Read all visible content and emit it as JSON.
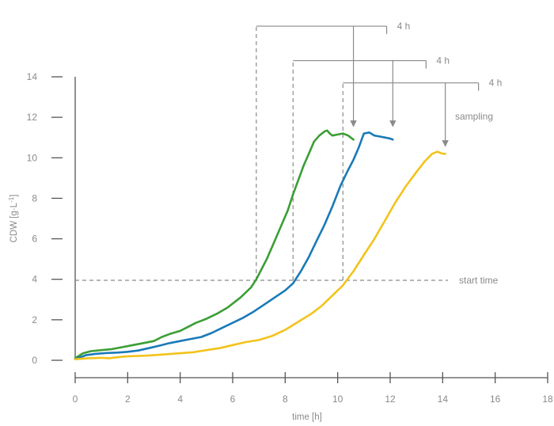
{
  "chart_data": {
    "type": "line",
    "xlabel": "time [h]",
    "ylabel_main": "CDW [g·L",
    "ylabel_sup": "-1",
    "ylabel_close": "]",
    "xlim": [
      0,
      18
    ],
    "ylim": [
      0,
      14
    ],
    "xticks": [
      0,
      2,
      4,
      6,
      8,
      10,
      12,
      14,
      16,
      18
    ],
    "yticks": [
      0,
      2,
      4,
      6,
      8,
      10,
      12,
      14
    ],
    "grid": false,
    "series": [
      {
        "color": "#3b9e35",
        "x": [
          0,
          0.3,
          0.6,
          1.0,
          1.4,
          1.8,
          2.2,
          2.6,
          3.0,
          3.3,
          3.6,
          4.0,
          4.3,
          4.6,
          5.0,
          5.4,
          5.8,
          6.1,
          6.3,
          6.5,
          6.7,
          6.9,
          7.1,
          7.3,
          7.5,
          7.7,
          7.9,
          8.1,
          8.3,
          8.5,
          8.7,
          8.9,
          9.1,
          9.3,
          9.5,
          9.6,
          9.7,
          9.8,
          10.0,
          10.2,
          10.4,
          10.6
        ],
        "y": [
          0.1,
          0.35,
          0.45,
          0.5,
          0.55,
          0.65,
          0.75,
          0.85,
          0.95,
          1.15,
          1.3,
          1.45,
          1.65,
          1.85,
          2.05,
          2.3,
          2.6,
          2.9,
          3.1,
          3.35,
          3.6,
          4.0,
          4.5,
          5.0,
          5.6,
          6.2,
          6.8,
          7.4,
          8.2,
          8.9,
          9.6,
          10.2,
          10.8,
          11.1,
          11.3,
          11.35,
          11.2,
          11.1,
          11.15,
          11.2,
          11.1,
          10.9
        ]
      },
      {
        "color": "#1a7ab8",
        "x": [
          0,
          0.4,
          0.8,
          1.2,
          1.6,
          2.0,
          2.4,
          2.8,
          3.2,
          3.6,
          4.0,
          4.4,
          4.8,
          5.2,
          5.6,
          6.0,
          6.4,
          6.8,
          7.2,
          7.6,
          8.0,
          8.3,
          8.6,
          8.9,
          9.2,
          9.5,
          9.8,
          10.1,
          10.4,
          10.6,
          10.8,
          11.0,
          11.2,
          11.4,
          11.6,
          11.8,
          12.0,
          12.1
        ],
        "y": [
          0.05,
          0.25,
          0.32,
          0.36,
          0.38,
          0.42,
          0.48,
          0.6,
          0.72,
          0.85,
          0.95,
          1.05,
          1.15,
          1.35,
          1.6,
          1.85,
          2.1,
          2.4,
          2.75,
          3.1,
          3.45,
          3.8,
          4.4,
          5.1,
          5.9,
          6.7,
          7.6,
          8.6,
          9.4,
          9.9,
          10.5,
          11.2,
          11.25,
          11.1,
          11.05,
          11.0,
          10.95,
          10.9
        ]
      },
      {
        "color": "#f2c31b",
        "x": [
          0,
          0.5,
          1.0,
          1.3,
          1.6,
          2.0,
          2.5,
          3.0,
          3.5,
          4.0,
          4.5,
          5.0,
          5.5,
          6.0,
          6.5,
          7.0,
          7.5,
          8.0,
          8.5,
          9.0,
          9.4,
          9.8,
          10.2,
          10.6,
          11.0,
          11.4,
          11.8,
          12.2,
          12.6,
          13.0,
          13.3,
          13.6,
          13.8,
          14.0,
          14.1
        ],
        "y": [
          0.05,
          0.1,
          0.12,
          0.1,
          0.15,
          0.2,
          0.22,
          0.25,
          0.3,
          0.35,
          0.4,
          0.5,
          0.6,
          0.75,
          0.9,
          1.0,
          1.2,
          1.5,
          1.9,
          2.3,
          2.7,
          3.2,
          3.7,
          4.4,
          5.2,
          6.0,
          6.9,
          7.8,
          8.6,
          9.3,
          9.8,
          10.2,
          10.3,
          10.2,
          10.2
        ]
      }
    ],
    "start_time": {
      "y": 3.95,
      "label": "start time"
    },
    "sampling_brackets": [
      {
        "x_start": 6.9,
        "x_end": 10.6,
        "label": "4 h",
        "top": 16.5
      },
      {
        "x_start": 8.3,
        "x_end": 12.1,
        "label": "4 h",
        "top": 14.8
      },
      {
        "x_start": 10.2,
        "x_end": 14.1,
        "label": "4 h",
        "top": 13.7
      }
    ],
    "sampling_label": "sampling",
    "annotation_color": "#8a8a8a"
  }
}
